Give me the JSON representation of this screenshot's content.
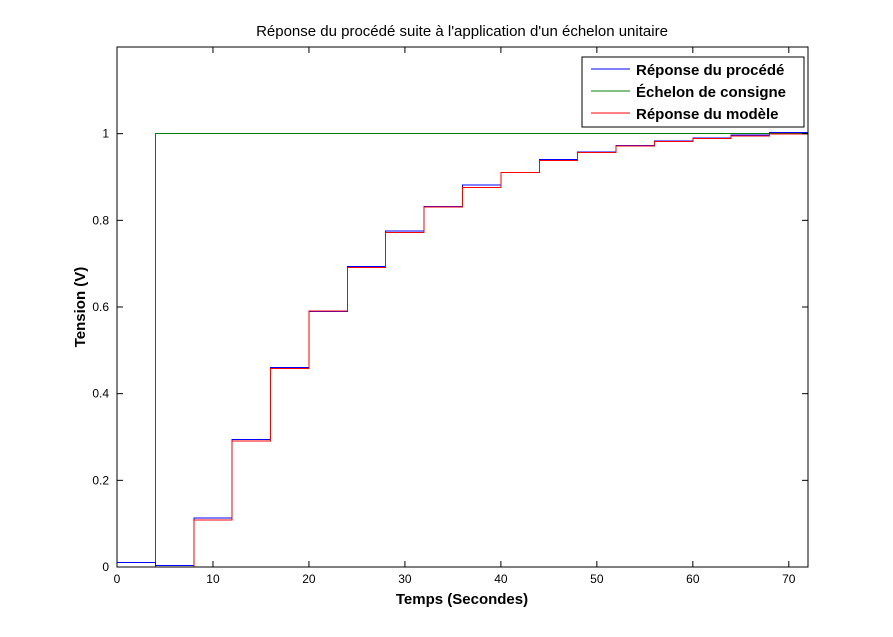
{
  "chart_data": {
    "type": "line",
    "title": "Réponse du procédé suite à l'application d'un échelon unitaire",
    "xlabel": "Temps (Secondes)",
    "ylabel": "Tension (V)",
    "xlim": [
      0,
      72
    ],
    "ylim": [
      0,
      1.2
    ],
    "xticks": [
      0,
      10,
      20,
      30,
      40,
      50,
      60,
      70
    ],
    "yticks": [
      0,
      0.2,
      0.4,
      0.6,
      0.8,
      1
    ],
    "xtick_labels": [
      "0",
      "10",
      "20",
      "30",
      "40",
      "50",
      "60",
      "70"
    ],
    "ytick_labels": [
      "0",
      "0.2",
      "0.4",
      "0.6",
      "0.8",
      "1"
    ],
    "grid": false,
    "step": true,
    "legend_position": "top-right",
    "series": [
      {
        "name": "Réponse du procédé",
        "color": "#0000ff",
        "x": [
          0,
          4,
          8,
          12,
          16,
          20,
          24,
          28,
          32,
          36,
          40,
          44,
          48,
          52,
          56,
          60,
          64,
          68,
          72
        ],
        "y": [
          0.01,
          0.003,
          0.113,
          0.294,
          0.46,
          0.59,
          0.693,
          0.775,
          0.832,
          0.881,
          0.91,
          0.94,
          0.958,
          0.973,
          0.983,
          0.99,
          0.997,
          1.003,
          1.003
        ]
      },
      {
        "name": "Échelon de consigne",
        "color": "#008000",
        "x": [
          0,
          4,
          72
        ],
        "y": [
          0,
          1,
          1
        ]
      },
      {
        "name": "Réponse du modèle",
        "color": "#ff0000",
        "x": [
          0,
          4,
          8,
          12,
          16,
          20,
          24,
          28,
          32,
          36,
          40,
          44,
          48,
          52,
          56,
          60,
          64,
          68,
          72
        ],
        "y": [
          0,
          0,
          0.109,
          0.291,
          0.458,
          0.591,
          0.691,
          0.772,
          0.831,
          0.876,
          0.91,
          0.938,
          0.957,
          0.971,
          0.982,
          0.989,
          0.995,
          0.999,
          1.0
        ]
      }
    ]
  }
}
